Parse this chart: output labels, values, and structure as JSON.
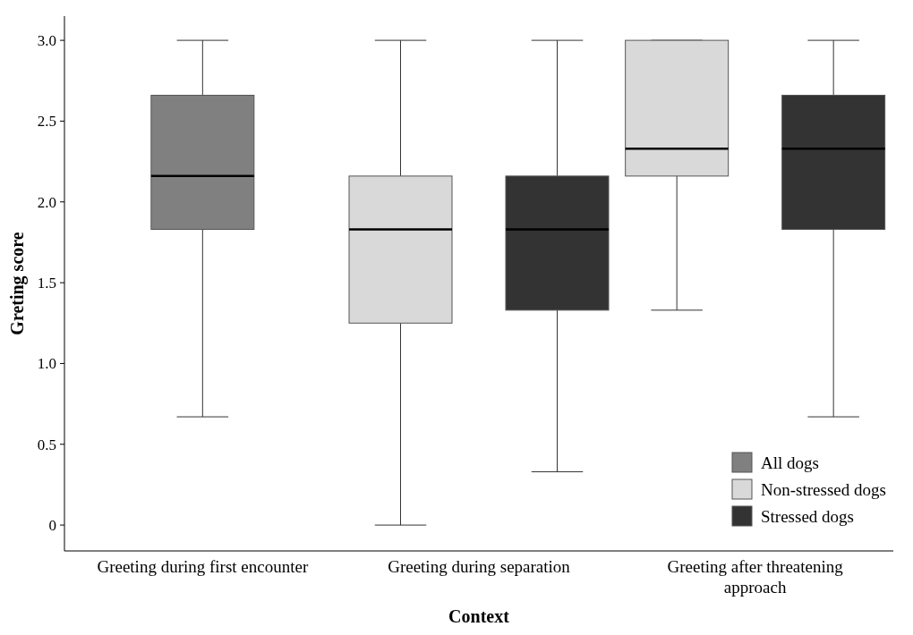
{
  "chart_data": {
    "type": "box",
    "xlabel": "Context",
    "ylabel": "Greting score",
    "categories": [
      "Greeting during first encounter",
      "Greeting during separation",
      "Greeting after threatening approach"
    ],
    "ylim": [
      -0.16,
      3.15
    ],
    "yticks": [
      {
        "value": 0,
        "label": "0"
      },
      0.5,
      {
        "value": 1,
        "label": "1.0"
      },
      1.5,
      {
        "value": 2,
        "label": "2.0"
      },
      2.5,
      {
        "value": 3,
        "label": "3.0"
      }
    ],
    "legend": "bottom right",
    "grid": false,
    "series": [
      {
        "name": "All dogs",
        "color": "#808080",
        "boxes": [
          {
            "low": 0.67,
            "q1": 1.83,
            "median": 2.16,
            "q3": 2.66,
            "high": 3.0
          },
          null,
          null
        ]
      },
      {
        "name": "Non-stressed dogs",
        "color": "#d9d9d9",
        "boxes": [
          null,
          {
            "low": 0,
            "q1": 1.25,
            "median": 1.83,
            "q3": 2.16,
            "high": 3.0
          },
          {
            "low": 1.33,
            "q1": 2.16,
            "median": 2.33,
            "q3": 3.0,
            "high": 3.0
          }
        ]
      },
      {
        "name": "Stressed dogs",
        "color": "#333333",
        "boxes": [
          null,
          {
            "low": 0.33,
            "q1": 1.33,
            "median": 1.83,
            "q3": 2.16,
            "high": 3.0
          },
          {
            "low": 0.67,
            "q1": 1.83,
            "median": 2.33,
            "q3": 2.66,
            "high": 3.0
          }
        ]
      }
    ]
  }
}
